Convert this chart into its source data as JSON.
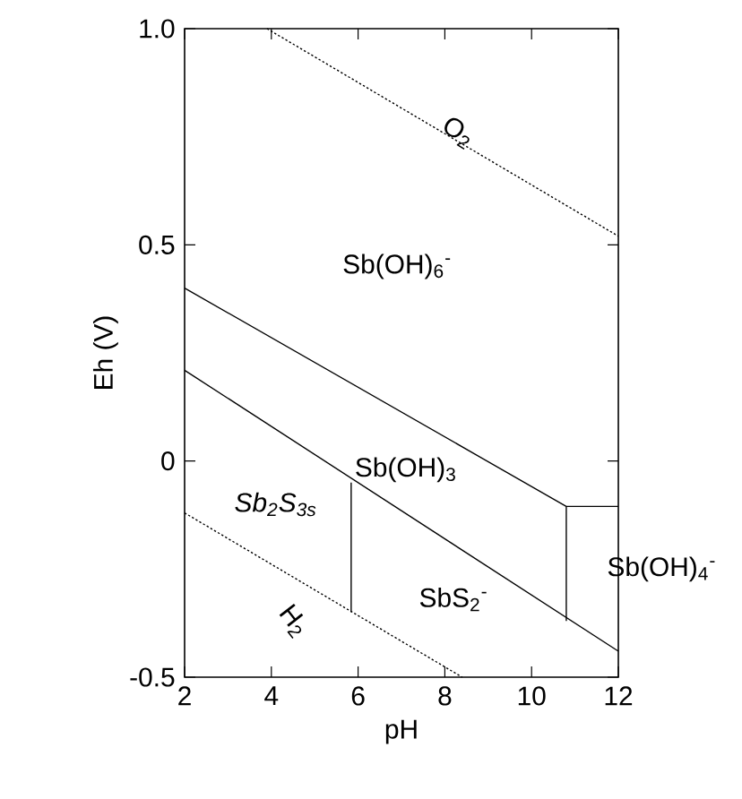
{
  "chart_data": {
    "type": "line",
    "xlabel": "pH",
    "ylabel": "Eh (V)",
    "xlim": [
      2,
      12
    ],
    "ylim": [
      -0.5,
      1.0
    ],
    "xticks": [
      2,
      4,
      6,
      8,
      10,
      12
    ],
    "yticks": [
      -0.5,
      0,
      0.5,
      {
        "value": 1.0,
        "label": "1.0"
      }
    ],
    "grid": false,
    "marker": "none",
    "series": [
      {
        "color": "#000000",
        "line_style": "dotted",
        "x": [
          3.9,
          12
        ],
        "values": [
          1.0,
          0.52
        ]
      },
      {
        "color": "#000000",
        "line_style": "dotted",
        "x": [
          2,
          8.4
        ],
        "values": [
          -0.12,
          -0.5
        ]
      },
      {
        "color": "#000000",
        "line_style": "solid",
        "x": [
          2,
          10.8,
          12
        ],
        "values": [
          0.4,
          -0.105,
          -0.105
        ]
      },
      {
        "color": "#000000",
        "line_style": "solid",
        "x": [
          10.8,
          10.8
        ],
        "values": [
          -0.105,
          -0.37
        ]
      },
      {
        "color": "#000000",
        "line_style": "solid",
        "x": [
          2,
          12
        ],
        "values": [
          0.21,
          -0.44
        ]
      },
      {
        "color": "#000000",
        "line_style": "solid",
        "x": [
          5.84,
          5.84
        ],
        "values": [
          -0.05,
          -0.35
        ]
      }
    ],
    "annotations": [
      {
        "text": "O$_{2}$",
        "x": 8.3,
        "y": 0.76
      },
      "Sb(OH)$_{6}$$^{-}$",
      "Sb(OH)$_{3}$",
      "Sb$_{2}$S$_{3s}$",
      "SbS$_{2}$$^{-}$",
      "Sb(OH)$_{4}$$^{-}$",
      "H$_{2}$"
    ]
  }
}
